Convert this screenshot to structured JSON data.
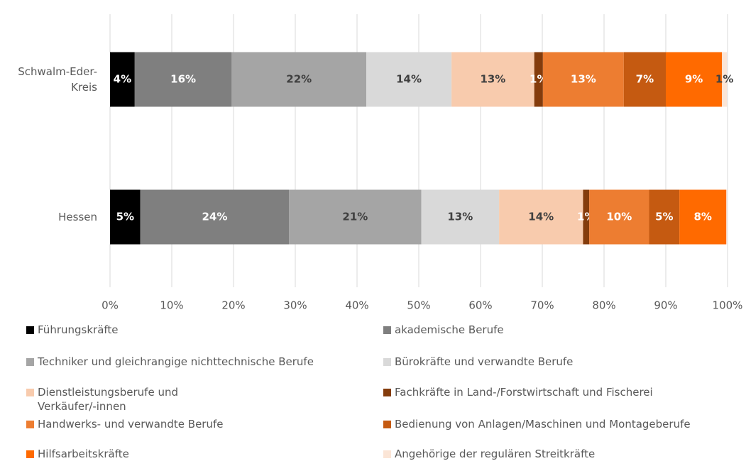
{
  "chart_data": {
    "type": "stacked-bar-horizontal",
    "categories": [
      "Schwalm-Eder-Kreis",
      "Hessen"
    ],
    "xlim": [
      0,
      100
    ],
    "xticks": [
      {
        "value": 0,
        "label": "0%"
      },
      {
        "value": 10,
        "label": "10%"
      },
      {
        "value": 20,
        "label": "20%"
      },
      {
        "value": 30,
        "label": "30%"
      },
      {
        "value": 40,
        "label": "40%"
      },
      {
        "value": 50,
        "label": "50%"
      },
      {
        "value": 60,
        "label": "60%"
      },
      {
        "value": 70,
        "label": "70%"
      },
      {
        "value": 80,
        "label": "80%"
      },
      {
        "value": 90,
        "label": "90%"
      },
      {
        "value": 100,
        "label": "100%"
      }
    ],
    "grid": true,
    "legend": "bottom",
    "series": [
      {
        "name": "Führungskräfte",
        "color": "#000000",
        "values": [
          4.0,
          4.9
        ],
        "value_labels": [
          "4%",
          "5%"
        ]
      },
      {
        "name": "akademische Berufe",
        "color": "#7f7f7f",
        "values": [
          15.7,
          24.1
        ],
        "value_labels": [
          "16%",
          "24%"
        ]
      },
      {
        "name": "Techniker und gleichrangige nichttechnische Berufe",
        "color": "#a5a5a5",
        "values": [
          21.8,
          21.4
        ],
        "value_labels": [
          "22%",
          "21%"
        ]
      },
      {
        "name": "Bürokräfte und verwandte Berufe",
        "color": "#d9d9d9",
        "values": [
          13.8,
          12.6
        ],
        "value_labels": [
          "14%",
          "13%"
        ]
      },
      {
        "name": "Dienstleistungsberufe und Verkäufer/-innen",
        "color": "#f8cbad",
        "values": [
          13.4,
          13.6
        ],
        "value_labels": [
          "13%",
          "14%"
        ]
      },
      {
        "name": "Fachkräfte in Land-/Forstwirtschaft und Fischerei",
        "color": "#843c0c",
        "values": [
          1.4,
          1.0
        ],
        "value_labels": [
          "1%",
          "1%"
        ]
      },
      {
        "name": "Handwerks- und verwandte Berufe",
        "color": "#ed7d31",
        "values": [
          13.1,
          9.7
        ],
        "value_labels": [
          "13%",
          "10%"
        ]
      },
      {
        "name": "Bedienung von Anlagen/Maschinen und Montageberufe",
        "color": "#c55a11",
        "values": [
          6.8,
          4.9
        ],
        "value_labels": [
          "7%",
          "5%"
        ]
      },
      {
        "name": "Hilfsarbeitskräfte",
        "color": "#ff6a00",
        "values": [
          9.1,
          7.6
        ],
        "value_labels": [
          "9%",
          "8%"
        ]
      },
      {
        "name": "Angehörige der regulären Streitkräfte",
        "color": "#fbe5d6",
        "values": [
          0.8,
          0.1
        ],
        "value_labels": [
          "1%",
          null
        ]
      }
    ]
  }
}
